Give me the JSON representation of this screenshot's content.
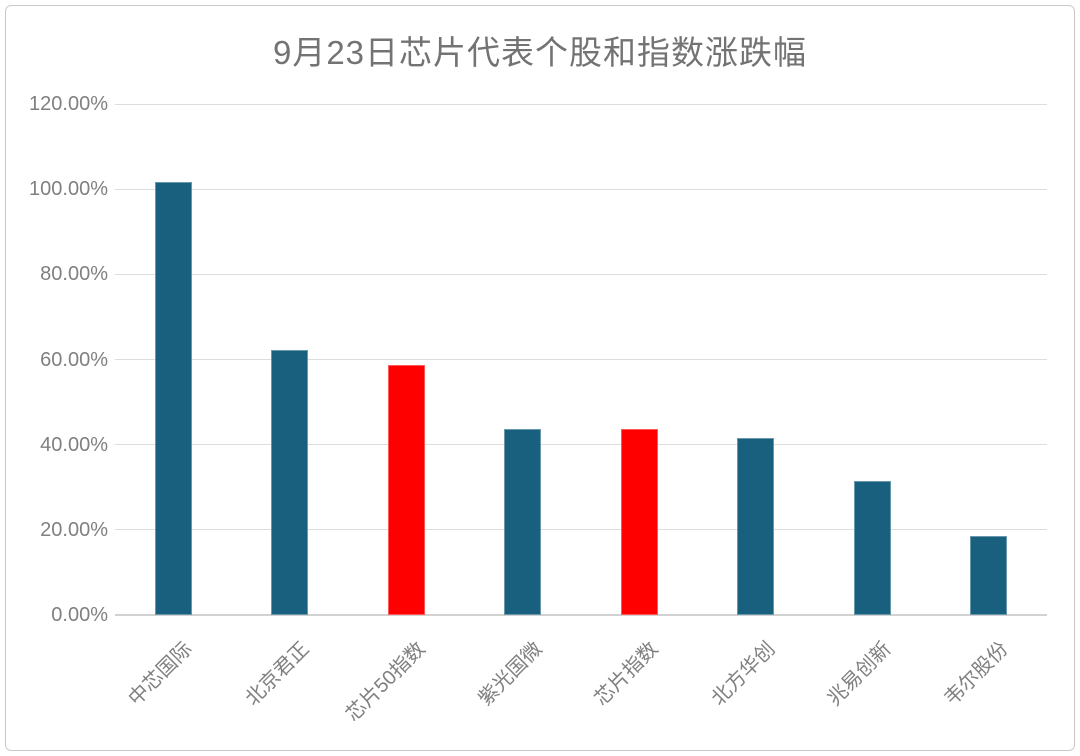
{
  "chart_data": {
    "type": "bar",
    "title": "9月23日芯片代表个股和指数涨跌幅",
    "categories": [
      "中芯国际",
      "北京君正",
      "芯片50指数",
      "紫光国微",
      "芯片指数",
      "北方华创",
      "兆易创新",
      "韦尔股份"
    ],
    "values": [
      101.7,
      62.2,
      58.6,
      43.6,
      43.7,
      41.6,
      31.5,
      18.6
    ],
    "unit": "%",
    "bar_colors": [
      "#19607E",
      "#19607E",
      "#FF0000",
      "#19607E",
      "#FF0000",
      "#19607E",
      "#19607E",
      "#19607E"
    ],
    "highlighted_categories": [
      "芯片50指数",
      "芯片指数"
    ],
    "xlabel": "",
    "ylabel": "",
    "ylim": [
      0,
      120
    ],
    "ytick_step": 20,
    "ytick_labels": [
      "0.00%",
      "20.00%",
      "40.00%",
      "60.00%",
      "80.00%",
      "100.00%",
      "120.00%"
    ],
    "grid": true,
    "legend_position": "none",
    "colors": {
      "bar_default": "#19607E",
      "bar_highlight": "#FF0000",
      "title_text": "#737373",
      "axis_text": "#808080",
      "gridline": "#DDDDDD"
    }
  }
}
